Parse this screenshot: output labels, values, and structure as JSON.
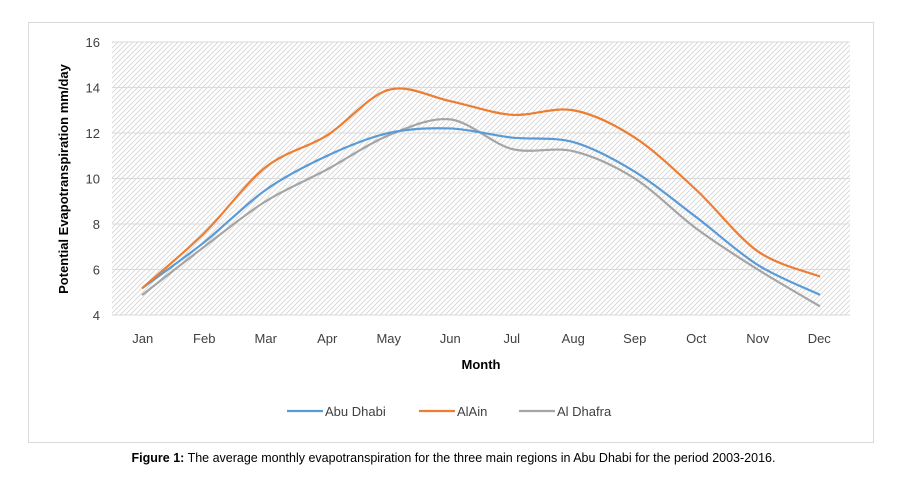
{
  "caption": {
    "prefix": "Figure 1:",
    "text": "The average monthly evapotranspiration for the three main regions in Abu Dhabi for the period 2003-2016."
  },
  "chart_data": {
    "type": "line",
    "title": "",
    "xlabel": "Month",
    "ylabel": "Potential Evapotranspiration mm/day",
    "categories": [
      "Jan",
      "Feb",
      "Mar",
      "Apr",
      "May",
      "Jun",
      "Jul",
      "Aug",
      "Sep",
      "Oct",
      "Nov",
      "Dec"
    ],
    "ylim": [
      4,
      16
    ],
    "yticks": [
      4,
      6,
      8,
      10,
      12,
      14,
      16
    ],
    "grid": true,
    "legend_position": "bottom",
    "smooth": true,
    "series": [
      {
        "name": "Abu Dhabi",
        "color": "#5b9bd5",
        "values": [
          5.2,
          7.2,
          9.5,
          11.0,
          12.0,
          12.2,
          11.8,
          11.6,
          10.3,
          8.3,
          6.2,
          4.9
        ]
      },
      {
        "name": "AlAin",
        "color": "#ed7d31",
        "values": [
          5.2,
          7.6,
          10.5,
          11.9,
          13.9,
          13.4,
          12.8,
          13.0,
          11.8,
          9.5,
          6.8,
          5.7
        ]
      },
      {
        "name": "Al Dhafra",
        "color": "#a5a5a5",
        "values": [
          4.9,
          7.0,
          9.0,
          10.4,
          11.9,
          12.6,
          11.3,
          11.2,
          10.0,
          7.8,
          6.0,
          4.4
        ]
      }
    ]
  }
}
